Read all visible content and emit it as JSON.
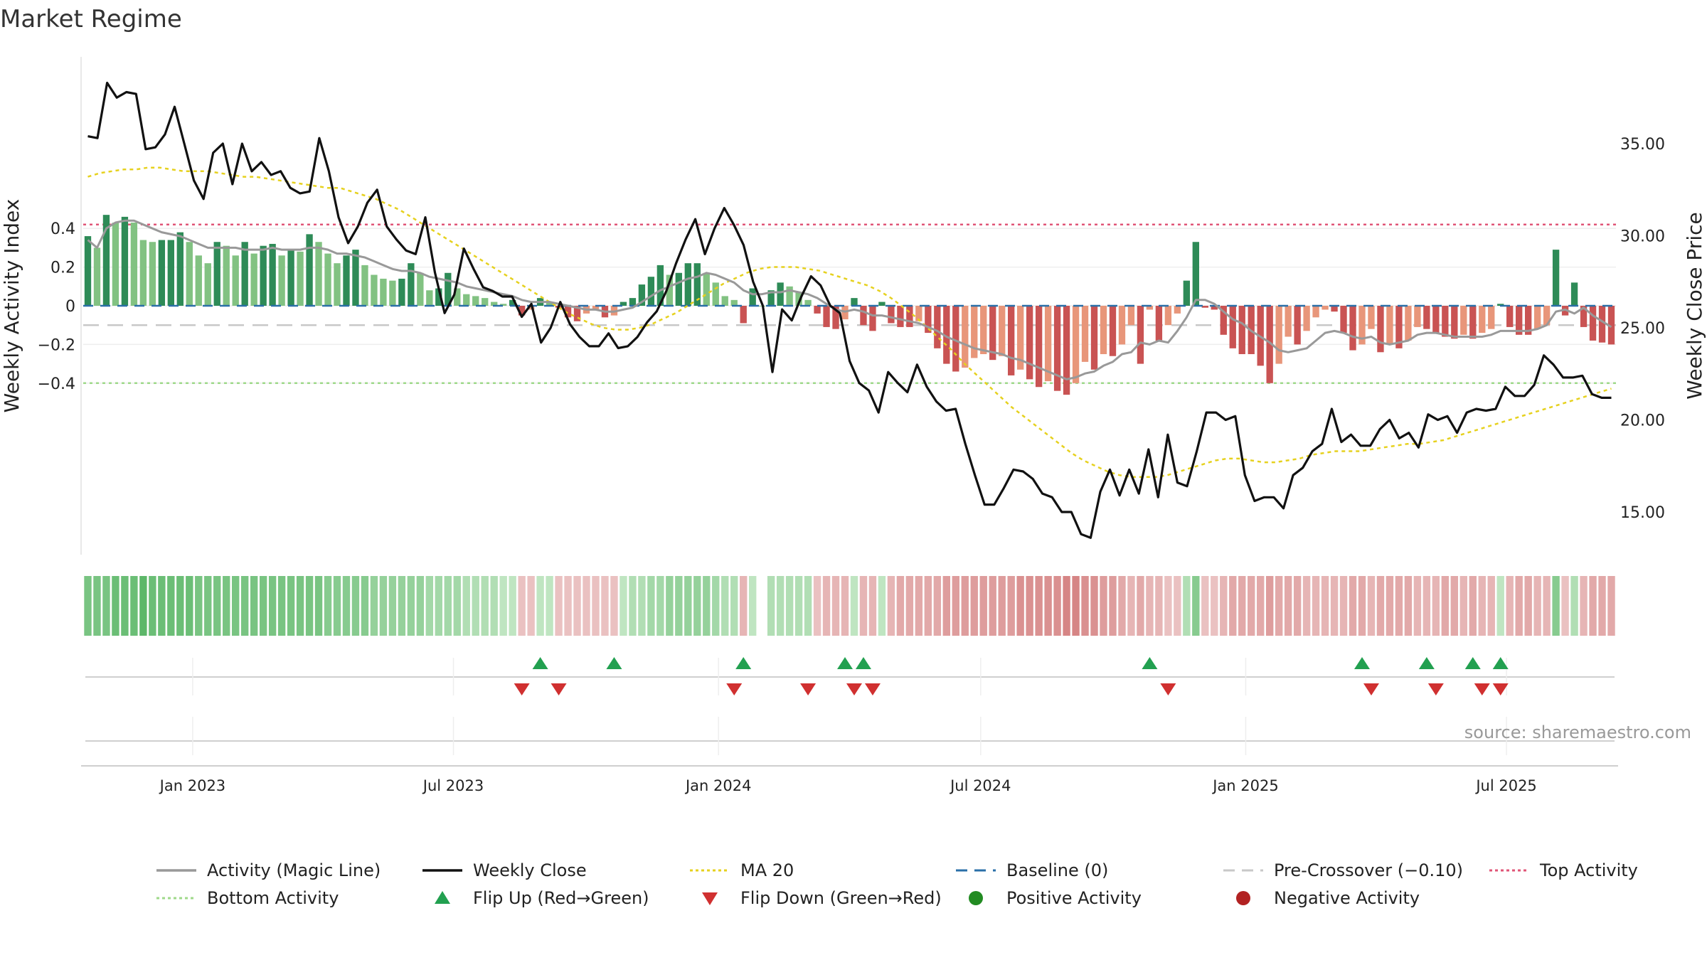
{
  "title": "Market Regime",
  "source": "source: sharemaestro.com",
  "colors": {
    "pos_dark": "#2e8b57",
    "pos_light": "#82c282",
    "neg_dark": "#c95353",
    "neg_light": "#e8967a",
    "magic": "#999999",
    "close": "#111111",
    "ma": "#e6d11e",
    "baseline": "#2a6fa8",
    "pre": "#c8c8c8",
    "top": "#e05577",
    "bottom": "#9fd98a",
    "flip_up": "#22a050",
    "flip_down": "#d03030",
    "pos_dot": "#228b22",
    "neg_dot": "#b22222"
  },
  "chart_data": {
    "type": "bar",
    "title": "Market Regime",
    "x_start": "2022-10-17",
    "x_end": "2025-09-15",
    "x_ticks": [
      "Jan 2023",
      "Jul 2023",
      "Jan 2024",
      "Jul 2024",
      "Jan 2025",
      "Jul 2025"
    ],
    "y_left": {
      "label": "Weekly Activity Index",
      "range": [
        -0.51,
        0.52
      ],
      "ticks": [
        "0.4",
        "0.2",
        "0",
        "−0.2",
        "−0.4"
      ],
      "tick_values": [
        0.4,
        0.2,
        0,
        -0.2,
        -0.4
      ]
    },
    "y_right": {
      "label": "Weekly Close Price",
      "range": [
        13.5,
        39.0
      ],
      "ticks": [
        "35.00",
        "30.00",
        "25.00",
        "20.00",
        "15.00"
      ],
      "tick_values": [
        35,
        30,
        25,
        20,
        15
      ]
    },
    "reference_lines": {
      "baseline": 0,
      "pre_crossover": -0.1,
      "top_activity": 0.42,
      "bottom_activity": -0.4
    },
    "activity": [
      0.36,
      0.3,
      0.47,
      0.43,
      0.46,
      0.43,
      0.34,
      0.33,
      0.34,
      0.34,
      0.38,
      0.33,
      0.26,
      0.22,
      0.33,
      0.31,
      0.26,
      0.33,
      0.27,
      0.31,
      0.32,
      0.26,
      0.29,
      0.28,
      0.37,
      0.33,
      0.27,
      0.22,
      0.26,
      0.29,
      0.21,
      0.16,
      0.14,
      0.13,
      0.14,
      0.22,
      0.17,
      0.08,
      0.09,
      0.17,
      0.09,
      0.06,
      0.05,
      0.04,
      0.02,
      0.01,
      0.03,
      -0.05,
      -0.02,
      0.04,
      0.02,
      -0.01,
      -0.06,
      -0.08,
      -0.04,
      -0.02,
      -0.06,
      -0.05,
      0.02,
      0.04,
      0.11,
      0.15,
      0.21,
      0.16,
      0.17,
      0.22,
      0.22,
      0.17,
      0.12,
      0.05,
      0.03,
      -0.09,
      0.09,
      0.0,
      0.08,
      0.12,
      0.1,
      0.07,
      0.03,
      -0.04,
      -0.11,
      -0.12,
      -0.07,
      0.04,
      -0.1,
      -0.13,
      0.02,
      -0.09,
      -0.11,
      -0.11,
      -0.08,
      -0.14,
      -0.22,
      -0.3,
      -0.34,
      -0.32,
      -0.27,
      -0.25,
      -0.28,
      -0.26,
      -0.36,
      -0.33,
      -0.38,
      -0.42,
      -0.39,
      -0.44,
      -0.46,
      -0.4,
      -0.29,
      -0.33,
      -0.25,
      -0.26,
      -0.2,
      -0.1,
      -0.3,
      -0.02,
      -0.18,
      -0.1,
      -0.04,
      0.13,
      0.33,
      -0.01,
      -0.02,
      -0.15,
      -0.22,
      -0.25,
      -0.25,
      -0.31,
      -0.4,
      -0.3,
      -0.16,
      -0.2,
      -0.13,
      -0.06,
      -0.02,
      -0.03,
      -0.14,
      -0.23,
      -0.2,
      -0.12,
      -0.24,
      -0.2,
      -0.22,
      -0.18,
      -0.11,
      -0.12,
      -0.14,
      -0.16,
      -0.17,
      -0.15,
      -0.17,
      -0.14,
      -0.12,
      0.01,
      -0.11,
      -0.15,
      -0.15,
      -0.12,
      -0.1,
      0.29,
      -0.05,
      0.12,
      -0.11,
      -0.18,
      -0.19,
      -0.2
    ],
    "activity_magic": [
      0.34,
      0.3,
      0.4,
      0.43,
      0.44,
      0.44,
      0.42,
      0.4,
      0.38,
      0.37,
      0.36,
      0.34,
      0.32,
      0.3,
      0.3,
      0.3,
      0.3,
      0.29,
      0.29,
      0.29,
      0.3,
      0.29,
      0.29,
      0.29,
      0.3,
      0.3,
      0.29,
      0.27,
      0.27,
      0.26,
      0.25,
      0.23,
      0.21,
      0.19,
      0.18,
      0.18,
      0.17,
      0.15,
      0.14,
      0.13,
      0.12,
      0.1,
      0.09,
      0.08,
      0.07,
      0.06,
      0.05,
      0.03,
      0.02,
      0.02,
      0.02,
      0.01,
      0.0,
      -0.01,
      -0.02,
      -0.02,
      -0.03,
      -0.03,
      -0.02,
      -0.01,
      0.02,
      0.05,
      0.08,
      0.1,
      0.12,
      0.14,
      0.15,
      0.17,
      0.16,
      0.14,
      0.12,
      0.08,
      0.06,
      0.06,
      0.07,
      0.07,
      0.08,
      0.07,
      0.06,
      0.04,
      0.01,
      -0.02,
      -0.03,
      -0.02,
      -0.03,
      -0.05,
      -0.05,
      -0.06,
      -0.07,
      -0.08,
      -0.09,
      -0.11,
      -0.13,
      -0.16,
      -0.18,
      -0.2,
      -0.22,
      -0.23,
      -0.24,
      -0.25,
      -0.27,
      -0.28,
      -0.3,
      -0.32,
      -0.34,
      -0.36,
      -0.38,
      -0.37,
      -0.35,
      -0.34,
      -0.31,
      -0.29,
      -0.25,
      -0.24,
      -0.19,
      -0.2,
      -0.18,
      -0.19,
      -0.13,
      -0.06,
      0.03,
      0.03,
      0.01,
      -0.03,
      -0.07,
      -0.09,
      -0.13,
      -0.16,
      -0.19,
      -0.23,
      -0.24,
      -0.23,
      -0.22,
      -0.18,
      -0.14,
      -0.13,
      -0.14,
      -0.16,
      -0.17,
      -0.16,
      -0.19,
      -0.2,
      -0.19,
      -0.18,
      -0.15,
      -0.14,
      -0.14,
      -0.15,
      -0.16,
      -0.16,
      -0.16,
      -0.16,
      -0.15,
      -0.13,
      -0.13,
      -0.13,
      -0.13,
      -0.12,
      -0.1,
      -0.03,
      -0.02,
      -0.04,
      -0.01,
      -0.05,
      -0.08,
      -0.11
    ],
    "weekly_close": [
      35.4,
      35.3,
      38.3,
      37.5,
      37.8,
      37.7,
      34.7,
      34.8,
      35.5,
      37.0,
      35.0,
      33.0,
      32.0,
      34.5,
      35.0,
      32.8,
      35.0,
      33.5,
      34.0,
      33.3,
      33.5,
      32.6,
      32.3,
      32.4,
      35.3,
      33.5,
      31.0,
      29.6,
      30.5,
      31.8,
      32.5,
      30.5,
      29.8,
      29.2,
      29.0,
      31.0,
      28.0,
      25.8,
      26.8,
      29.3,
      28.2,
      27.2,
      27.0,
      26.7,
      26.7,
      25.6,
      26.3,
      24.2,
      25.0,
      26.4,
      25.2,
      24.5,
      24.0,
      24.0,
      24.7,
      23.9,
      24.0,
      24.5,
      25.3,
      25.9,
      27.0,
      28.5,
      29.8,
      30.9,
      29.0,
      30.4,
      31.5,
      30.6,
      29.5,
      27.5,
      26.2,
      22.6,
      26.0,
      25.4,
      26.7,
      27.8,
      27.3,
      26.2,
      25.8,
      23.2,
      22.0,
      21.6,
      20.4,
      22.6,
      22.0,
      21.5,
      23.0,
      21.8,
      21.0,
      20.5,
      20.6,
      18.7,
      17.0,
      15.4,
      15.4,
      16.3,
      17.3,
      17.2,
      16.8,
      16.0,
      15.8,
      15.0,
      15.0,
      13.8,
      13.6,
      16.1,
      17.3,
      15.9,
      17.3,
      16.0,
      18.4,
      15.8,
      19.2,
      16.6,
      16.4,
      18.3,
      20.4,
      20.4,
      20.0,
      20.2,
      17.0,
      15.6,
      15.8,
      15.8,
      15.2,
      17.0,
      17.4,
      18.3,
      18.7,
      20.6,
      18.8,
      19.2,
      18.6,
      18.6,
      19.5,
      20.0,
      19.0,
      19.3,
      18.5,
      20.3,
      20.0,
      20.2,
      19.3,
      20.4,
      20.6,
      20.5,
      20.6,
      21.8,
      21.3,
      21.3,
      21.9,
      23.5,
      23.0,
      22.3,
      22.3,
      22.4,
      21.4,
      21.2,
      21.2
    ],
    "ma20": [
      33.2,
      33.4,
      33.5,
      33.6,
      33.6,
      33.7,
      33.7,
      33.6,
      33.5,
      33.5,
      33.5,
      33.4,
      33.3,
      33.2,
      33.2,
      33.1,
      33.0,
      32.9,
      32.8,
      32.7,
      32.6,
      32.6,
      32.4,
      32.2,
      32.0,
      31.7,
      31.4,
      31.0,
      30.6,
      30.2,
      29.8,
      29.4,
      29.0,
      28.6,
      28.2,
      27.8,
      27.4,
      27.0,
      26.6,
      26.2,
      25.8,
      25.5,
      25.2,
      25.0,
      24.9,
      24.9,
      25.0,
      25.2,
      25.5,
      25.8,
      26.2,
      26.6,
      27.0,
      27.4,
      27.7,
      28.0,
      28.2,
      28.3,
      28.3,
      28.3,
      28.2,
      28.1,
      27.9,
      27.7,
      27.5,
      27.3,
      27.0,
      26.6,
      26.1,
      25.6,
      25.0,
      24.4,
      23.8,
      23.1,
      22.5,
      21.9,
      21.3,
      20.7,
      20.2,
      19.7,
      19.2,
      18.7,
      18.2,
      17.8,
      17.5,
      17.2,
      17.0,
      16.9,
      16.9,
      16.9,
      17.0,
      17.2,
      17.4,
      17.6,
      17.8,
      17.9,
      17.9,
      17.8,
      17.7,
      17.7,
      17.8,
      17.9,
      18.1,
      18.2,
      18.3,
      18.3,
      18.3,
      18.4,
      18.5,
      18.6,
      18.7,
      18.7,
      18.8,
      18.9,
      19.1,
      19.3,
      19.5,
      19.7,
      19.9,
      20.1,
      20.3,
      20.5,
      20.7,
      20.9,
      21.1,
      21.3,
      21.5,
      21.7
    ],
    "ribbon": [
      0.6,
      0.6,
      0.6,
      0.7,
      0.7,
      0.7,
      0.8,
      0.7,
      0.7,
      0.7,
      0.7,
      0.7,
      0.6,
      0.6,
      0.6,
      0.6,
      0.6,
      0.6,
      0.6,
      0.6,
      0.6,
      0.6,
      0.6,
      0.6,
      0.6,
      0.6,
      0.5,
      0.5,
      0.5,
      0.5,
      0.5,
      0.4,
      0.4,
      0.4,
      0.4,
      0.4,
      0.4,
      0.3,
      0.3,
      0.3,
      0.3,
      0.2,
      0.2,
      0.2,
      0.2,
      0.1,
      0.1,
      -0.1,
      -0.1,
      0.1,
      0.1,
      -0.1,
      -0.1,
      -0.1,
      -0.1,
      -0.1,
      -0.1,
      -0.1,
      0.1,
      0.2,
      0.2,
      0.3,
      0.3,
      0.4,
      0.4,
      0.4,
      0.4,
      0.4,
      0.3,
      0.2,
      0.2,
      -0.2,
      0.1,
      0.0,
      0.2,
      0.2,
      0.2,
      0.2,
      0.2,
      -0.1,
      -0.2,
      -0.2,
      -0.2,
      0.1,
      -0.2,
      -0.2,
      0.1,
      -0.2,
      -0.3,
      -0.3,
      -0.3,
      -0.3,
      -0.3,
      -0.4,
      -0.4,
      -0.4,
      -0.4,
      -0.4,
      -0.4,
      -0.4,
      -0.4,
      -0.5,
      -0.5,
      -0.5,
      -0.5,
      -0.5,
      -0.6,
      -0.6,
      -0.5,
      -0.5,
      -0.4,
      -0.4,
      -0.3,
      -0.2,
      -0.3,
      -0.2,
      -0.2,
      -0.1,
      -0.1,
      0.2,
      0.5,
      -0.1,
      -0.1,
      -0.2,
      -0.3,
      -0.3,
      -0.3,
      -0.3,
      -0.4,
      -0.3,
      -0.3,
      -0.3,
      -0.2,
      -0.2,
      -0.2,
      -0.2,
      -0.2,
      -0.3,
      -0.3,
      -0.2,
      -0.3,
      -0.3,
      -0.3,
      -0.3,
      -0.2,
      -0.2,
      -0.2,
      -0.3,
      -0.3,
      -0.2,
      -0.3,
      -0.2,
      -0.2,
      0.1,
      -0.2,
      -0.3,
      -0.3,
      -0.2,
      -0.2,
      0.5,
      -0.1,
      0.2,
      -0.2,
      -0.3,
      -0.3,
      -0.3
    ],
    "flips_up": [
      49,
      57,
      71,
      82,
      84,
      115,
      138,
      145,
      150,
      153
    ],
    "flips_down": [
      47,
      51,
      70,
      78,
      83,
      85,
      117,
      139,
      146,
      151,
      153
    ]
  },
  "legend": [
    {
      "label": "Activity (Magic Line)",
      "key": "magic",
      "style": "line"
    },
    {
      "label": "Weekly Close",
      "key": "close",
      "style": "line"
    },
    {
      "label": "MA 20",
      "key": "ma",
      "style": "dotted"
    },
    {
      "label": "Baseline (0)",
      "key": "baseline",
      "style": "dashed"
    },
    {
      "label": "Pre-Crossover (−0.10)",
      "key": "pre",
      "style": "dashed"
    },
    {
      "label": "Top Activity",
      "key": "top",
      "style": "dotted"
    },
    {
      "label": "Bottom Activity",
      "key": "bottom",
      "style": "dotted"
    },
    {
      "label": "Flip Up (Red→Green)",
      "key": "flip_up",
      "style": "tri-up"
    },
    {
      "label": "Flip Down (Green→Red)",
      "key": "flip_down",
      "style": "tri-down"
    },
    {
      "label": "Positive Activity",
      "key": "pos_dot",
      "style": "dot"
    },
    {
      "label": "Negative Activity",
      "key": "neg_dot",
      "style": "dot"
    }
  ]
}
